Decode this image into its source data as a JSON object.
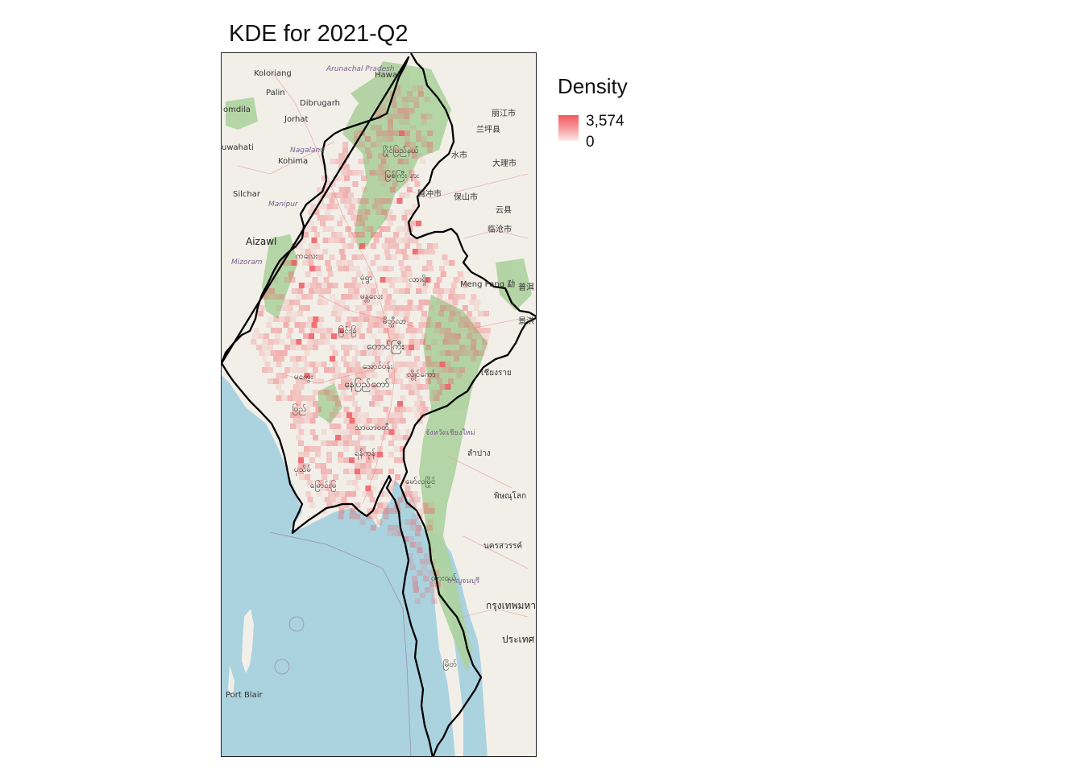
{
  "title": "KDE for 2021-Q2",
  "legend": {
    "title": "Density",
    "max_label": "3,574",
    "min_label": "0",
    "colors": [
      "#f4585e",
      "#fde8e9"
    ]
  },
  "map": {
    "colors": {
      "sea": "#aad3df",
      "land": "#f2efe9",
      "forest": "#add19e",
      "border": "#000000",
      "density": "#f05a60"
    },
    "place_labels": [
      "Koloriang",
      "Arunachal Pradesh",
      "Hawai",
      "Palin",
      "Dibrugarh",
      "omdila",
      "Jorhat",
      "uwahati",
      "Nagaland",
      "Kohima",
      "Silchar",
      "Manipur",
      "Aizawl",
      "Mizoram",
      "丽江市",
      "兰坪县",
      "水市",
      "大理市",
      "腾冲市",
      "保山市",
      "云县",
      "临沧市",
      "Meng Pang 勐",
      "普洱",
      "景洪",
      "ဂြိုင်ပြည်နယ်",
      "မြစ်ကြီး နား",
      "ကလေး",
      "မုံရွာ",
      "လားရှိုး",
      "မန္တလေး",
      "မိတ္ထီလာ",
      "မြင်းခြံ",
      "မကွေး",
      "တောင်ကြီး",
      "အောင်ပန်း",
      "လွိုင်ကော်",
      "နေပြည်တော်",
      "ပြည်",
      "သာယာဝတီ",
      "ရန်ကုန်",
      "မြောင်းမြ",
      "ပုသိမ်",
      "မော်လမြိုင်",
      "ထားဝယ်",
      "မြိတ်",
      "เชียงราย",
      "จังหวัดเชียงใหม่",
      "ลำปาง",
      "พิษณุโลก",
      "นครสวรรค์",
      "กาญจนบุรี",
      "กรุงเทพมหานคร",
      "ประเทศ",
      "Port Blair"
    ]
  }
}
